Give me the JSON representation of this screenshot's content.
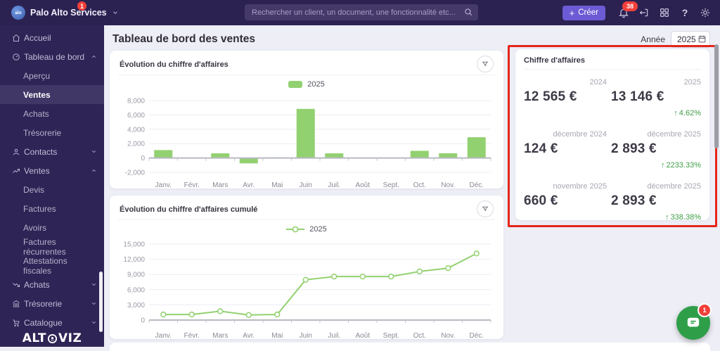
{
  "topbar": {
    "company": "Palo Alto Services",
    "company_badge": "1",
    "logo_text": "alo",
    "search_placeholder": "Rechercher un client, un document, une fonctionnalité etc...",
    "create_plus": "+",
    "create_label": "Créer",
    "bell_badge": "38",
    "help_label": "?"
  },
  "sidebar": {
    "items": [
      {
        "label": "Accueil",
        "icon": "home"
      },
      {
        "label": "Tableau de bord",
        "icon": "gauge",
        "chevron": "up"
      },
      {
        "label": "Aperçu",
        "sub": true
      },
      {
        "label": "Ventes",
        "sub": true,
        "active": true
      },
      {
        "label": "Achats",
        "sub": true
      },
      {
        "label": "Trésorerie",
        "sub": true
      },
      {
        "label": "Contacts",
        "icon": "person",
        "chevron": "down"
      },
      {
        "label": "Ventes",
        "icon": "trend-up",
        "chevron": "up"
      },
      {
        "label": "Devis",
        "sub": true
      },
      {
        "label": "Factures",
        "sub": true
      },
      {
        "label": "Avoirs",
        "sub": true
      },
      {
        "label": "Factures récurrentes",
        "sub": true
      },
      {
        "label": "Attestations fiscales",
        "sub": true
      },
      {
        "label": "Achats",
        "icon": "trend-down",
        "chevron": "down"
      },
      {
        "label": "Trésorerie",
        "icon": "bank",
        "chevron": "down"
      },
      {
        "label": "Catalogue",
        "icon": "cart",
        "chevron": "down"
      }
    ],
    "logo_pre": "ALT",
    "logo_post": "VIZ"
  },
  "header": {
    "title": "Tableau de bord des ventes",
    "year_label": "Année",
    "year_value": "2025"
  },
  "chart_data": [
    {
      "type": "bar",
      "title": "Évolution du chiffre d'affaires",
      "legend": [
        "2025"
      ],
      "categories": [
        "Janv.",
        "Févr.",
        "Mars",
        "Avr.",
        "Mai",
        "Juin",
        "Juil.",
        "Août",
        "Sept.",
        "Oct.",
        "Nov.",
        "Déc."
      ],
      "values": [
        1100,
        0,
        650,
        -750,
        100,
        6843,
        650,
        0,
        0,
        1000,
        660,
        2893
      ],
      "xlabel": "",
      "ylabel": "",
      "ylim": [
        -2000,
        8000
      ],
      "yticks": [
        -2000,
        0,
        2000,
        4000,
        6000,
        8000
      ],
      "grid": true,
      "legend_position": "top",
      "color": "#92d170"
    },
    {
      "type": "line",
      "title": "Évolution du chiffre d'affaires cumulé",
      "legend": [
        "2025"
      ],
      "categories": [
        "Janv.",
        "Févr.",
        "Mars",
        "Avr.",
        "Mai",
        "Juin",
        "Juil.",
        "Août",
        "Sept.",
        "Oct.",
        "Nov.",
        "Déc."
      ],
      "values": [
        1100,
        1100,
        1750,
        1000,
        1100,
        7943,
        8593,
        8593,
        8593,
        9593,
        10253,
        13146
      ],
      "xlabel": "",
      "ylabel": "",
      "ylim": [
        0,
        15000
      ],
      "yticks": [
        0,
        3000,
        6000,
        9000,
        12000,
        15000
      ],
      "grid": true,
      "legend_position": "top",
      "color": "#92d170"
    }
  ],
  "panel": {
    "title": "Chiffre d'affaires",
    "arrow": "↑",
    "rows": [
      {
        "label_left": "2024",
        "label_right": "2025",
        "value_left": "12 565 €",
        "value_right": "13 146 €",
        "delta": "4.62%"
      },
      {
        "label_left": "décembre 2024",
        "label_right": "décembre 2025",
        "value_left": "124 €",
        "value_right": "2 893 €",
        "delta": "2233.33%"
      },
      {
        "label_left": "novembre 2025",
        "label_right": "décembre 2025",
        "value_left": "660 €",
        "value_right": "2 893 €",
        "delta": "338.38%"
      }
    ]
  },
  "chat": {
    "badge": "1"
  },
  "colors": {
    "topbar": "#2c2252",
    "sidebar": "#2e2455",
    "accent_purple": "#6c5bd4",
    "badge_red": "#f23f3a",
    "chart_green": "#92d170",
    "delta_green": "#3e9e47",
    "annotation_red": "#e4251c",
    "chat_green": "#2f9e49"
  }
}
